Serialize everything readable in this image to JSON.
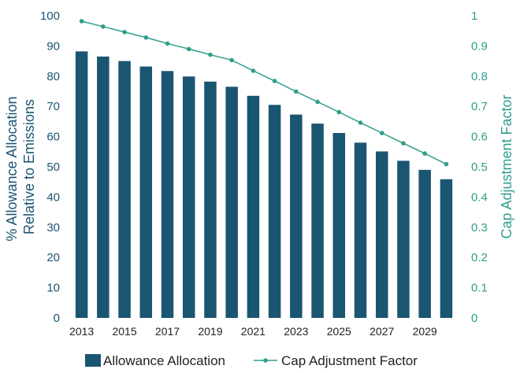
{
  "colors": {
    "bar": "#1a5572",
    "line": "#2f9e8a",
    "left_axis_text": "#1a5572",
    "right_axis_text": "#2f9e8a",
    "x_axis_text": "#222222"
  },
  "chart_data": {
    "type": "bar",
    "x": [
      2013,
      2014,
      2015,
      2016,
      2017,
      2018,
      2019,
      2020,
      2021,
      2022,
      2023,
      2024,
      2025,
      2026,
      2027,
      2028,
      2029,
      2030
    ],
    "x_tick_labels": [
      "2013",
      "2015",
      "2017",
      "2019",
      "2021",
      "2023",
      "2025",
      "2027",
      "2029"
    ],
    "series": [
      {
        "name": "Allowance Allocation",
        "type": "bar",
        "axis": "left",
        "values": [
          88.2,
          86.5,
          85.0,
          83.2,
          81.7,
          79.9,
          78.2,
          76.5,
          73.5,
          70.5,
          67.3,
          64.3,
          61.2,
          58.0,
          55.1,
          52.0,
          49.0,
          45.9
        ]
      },
      {
        "name": "Cap Adjustment Factor",
        "type": "line",
        "axis": "right",
        "values": [
          0.982,
          0.964,
          0.946,
          0.928,
          0.908,
          0.89,
          0.871,
          0.853,
          0.818,
          0.784,
          0.749,
          0.715,
          0.681,
          0.646,
          0.612,
          0.578,
          0.544,
          0.509
        ]
      }
    ],
    "left_axis": {
      "label_lines": [
        "% Allowance Allocation",
        "Relative to Emissions"
      ],
      "range": [
        0,
        100
      ],
      "ticks": [
        "0",
        "10",
        "20",
        "30",
        "40",
        "50",
        "60",
        "70",
        "80",
        "90",
        "100"
      ]
    },
    "right_axis": {
      "label": "Cap Adjustment Factor",
      "range": [
        0,
        1
      ],
      "ticks": [
        "0",
        "0.1",
        "0.2",
        "0.3",
        "0.4",
        "0.5",
        "0.6",
        "0.7",
        "0.8",
        "0.9",
        "1"
      ]
    },
    "grid": false,
    "legend_position": "bottom"
  }
}
